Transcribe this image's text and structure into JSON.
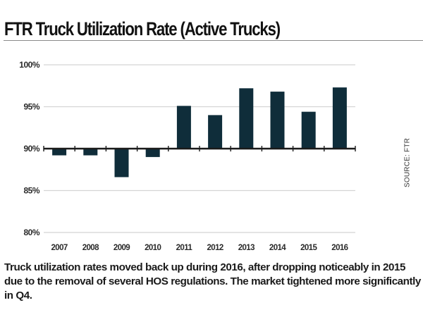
{
  "title": "FTR Truck Utilization Rate (Active Trucks)",
  "source": "SOURCE: FTR",
  "caption": "Truck utilization rates moved back up during 2016, after dropping noticeably in 2015 due to the removal of several HOS regulations. The market tightened more significantly in Q4.",
  "colors": {
    "bar": "#0f2d3a",
    "axis": "#1a1a1a",
    "grid": "#d4d4d4"
  },
  "chart_data": {
    "type": "bar",
    "title": "FTR Truck Utilization Rate (Active Trucks)",
    "xlabel": "",
    "ylabel": "",
    "categories": [
      "2007",
      "2008",
      "2009",
      "2010",
      "2011",
      "2012",
      "2013",
      "2014",
      "2015",
      "2016"
    ],
    "values": [
      89.2,
      89.2,
      86.6,
      89.0,
      95.1,
      94.0,
      97.2,
      96.8,
      94.4,
      97.3
    ],
    "baseline": 90,
    "ylim": [
      80,
      100
    ],
    "yticks": [
      100,
      95,
      90,
      85,
      80
    ],
    "ytick_labels": [
      "100%",
      "95%",
      "90%",
      "85%",
      "80%"
    ],
    "grid": true,
    "legend": "none"
  }
}
